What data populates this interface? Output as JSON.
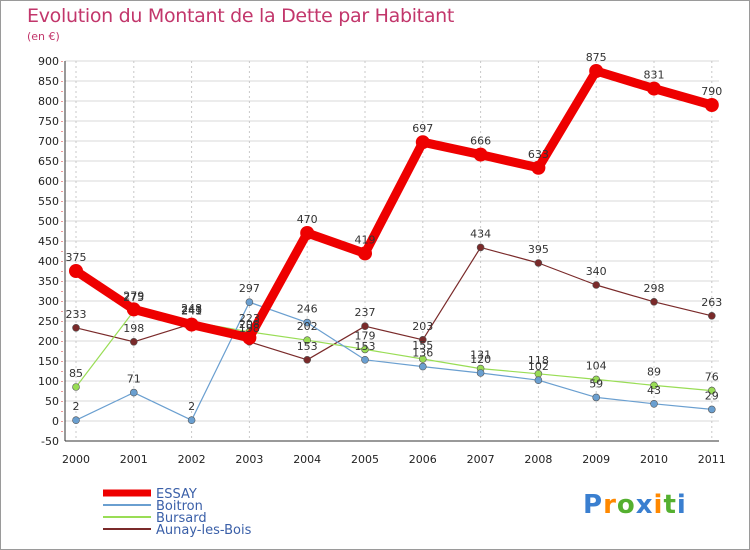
{
  "chart_data": {
    "type": "line",
    "title": "Evolution du Montant de la Dette par Habitant",
    "subtitle": "(en €)",
    "categories": [
      "2000",
      "2001",
      "2002",
      "2003",
      "2004",
      "2005",
      "2006",
      "2007",
      "2008",
      "2009",
      "2010",
      "2011"
    ],
    "ylim": [
      -50,
      900
    ],
    "yticks": [
      -50,
      0,
      50,
      100,
      150,
      200,
      250,
      300,
      350,
      400,
      450,
      500,
      550,
      600,
      650,
      700,
      750,
      800,
      850,
      900
    ],
    "grid": true,
    "legend_position": "bottom-left",
    "series": [
      {
        "name": "ESSAY",
        "color": "#ee0000",
        "values": [
          375,
          279,
          241,
          208,
          470,
          419,
          697,
          666,
          633,
          875,
          831,
          790
        ]
      },
      {
        "name": "Boitron",
        "color": "#6a9fd0",
        "values": [
          2,
          71,
          2,
          297,
          246,
          153,
          136,
          120,
          102,
          59,
          43,
          29
        ]
      },
      {
        "name": "Bursard",
        "color": "#99dd55",
        "values": [
          85,
          275,
          248,
          223,
          202,
          179,
          155,
          131,
          118,
          104,
          89,
          76
        ]
      },
      {
        "name": "Aunay-les-Bois",
        "color": "#7a2a2a",
        "values": [
          233,
          198,
          243,
          198,
          153,
          237,
          203,
          434,
          395,
          340,
          298,
          263
        ]
      }
    ]
  },
  "brand": {
    "letters": [
      "P",
      "r",
      "o",
      "x",
      "i",
      "t",
      "i"
    ],
    "colors": [
      "#3a7fd0",
      "#ff8800",
      "#55b030",
      "#3a7fd0",
      "#ff8800",
      "#55b030",
      "#3a7fd0"
    ]
  }
}
